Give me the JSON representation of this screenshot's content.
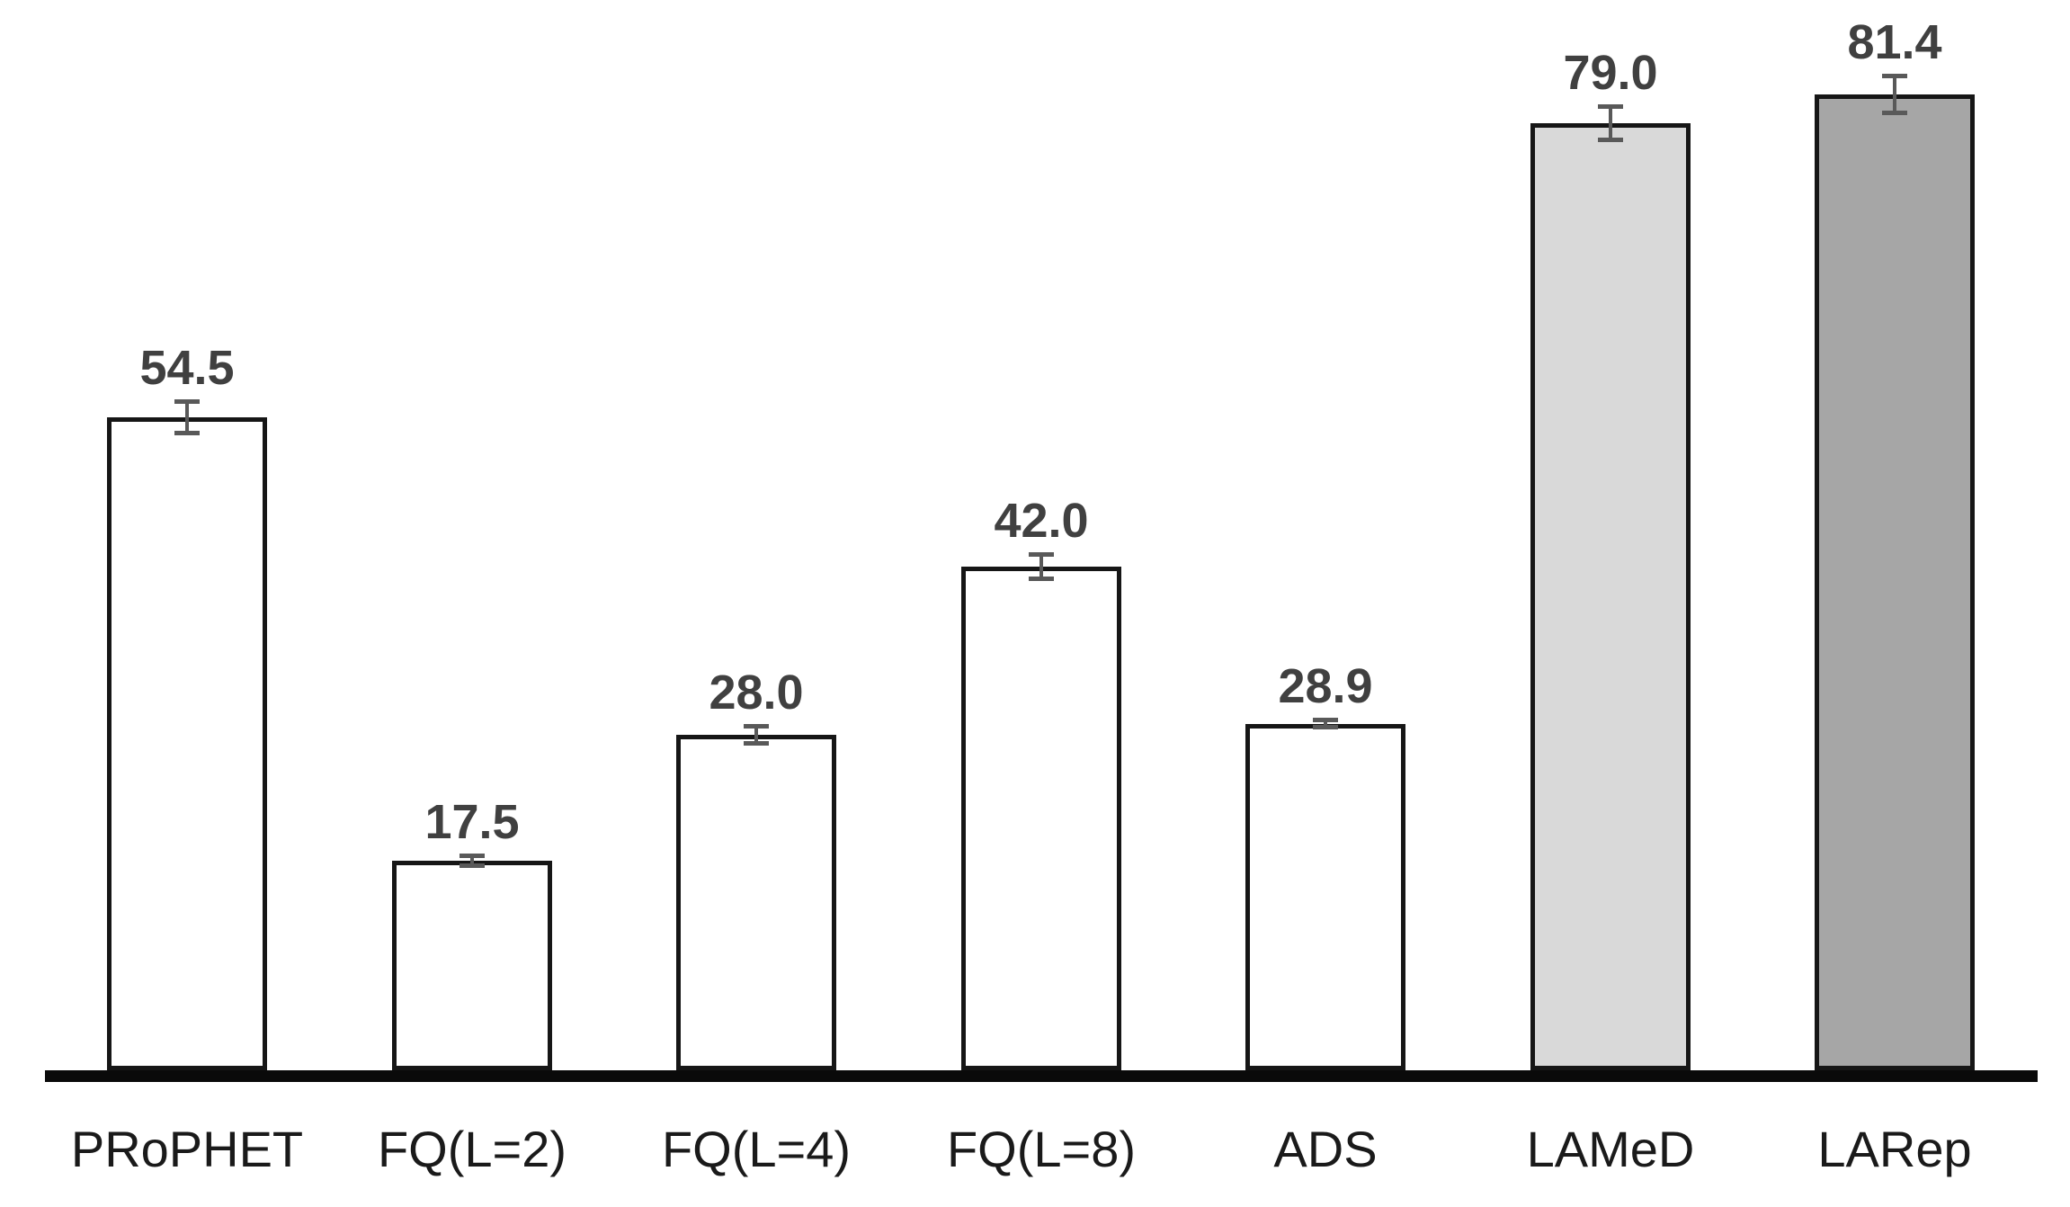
{
  "chart_data": {
    "type": "bar",
    "title": "",
    "xlabel": "",
    "ylabel": "",
    "categories": [
      "PRoPHET",
      "FQ(L=2)",
      "FQ(L=4)",
      "FQ(L=8)",
      "ADS",
      "LAMeD",
      "LARep"
    ],
    "values": [
      54.5,
      17.5,
      28.0,
      42.0,
      28.9,
      79.0,
      81.4
    ],
    "value_labels": [
      "54.5",
      "17.5",
      "28.0",
      "42.0",
      "28.9",
      "79.0",
      "81.4"
    ],
    "errors": [
      1.5,
      0.6,
      0.9,
      1.2,
      0.5,
      1.6,
      1.7
    ],
    "bar_fill_colors": [
      "#ffffff",
      "#ffffff",
      "#ffffff",
      "#ffffff",
      "#ffffff",
      "#d9d9d9",
      "#a6a6a6"
    ],
    "bar_border_color": "#161616",
    "error_bar_color": "#595959",
    "value_label_color": "#404040",
    "category_label_color": "#1a1a1a",
    "axis_line_color": "#0a0a0a",
    "background_color": "#ffffff",
    "ylim": [
      0,
      89
    ],
    "grid": false,
    "legend_position": "none"
  }
}
